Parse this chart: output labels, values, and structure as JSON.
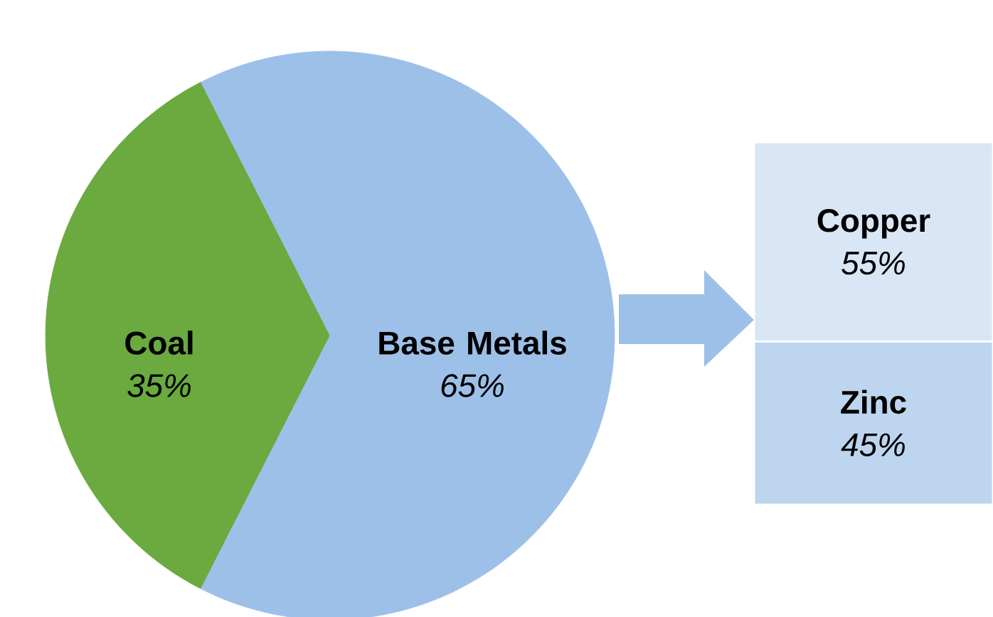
{
  "chart_data": [
    {
      "type": "pie",
      "categories": [
        "Coal",
        "Base Metals"
      ],
      "values": [
        35,
        65
      ],
      "value_labels": [
        "35%",
        "65%"
      ],
      "colors": [
        "#6aaa3e",
        "#9dc0e8"
      ]
    },
    {
      "type": "bar",
      "stacked": true,
      "categories": [
        null
      ],
      "series": [
        {
          "name": "Zinc",
          "color": "#bdd5ee",
          "values": [
            45
          ],
          "value_labels": [
            "45%"
          ]
        },
        {
          "name": "Copper",
          "color": "#d9e6f5",
          "values": [
            55
          ],
          "value_labels": [
            "55%"
          ]
        }
      ]
    }
  ]
}
